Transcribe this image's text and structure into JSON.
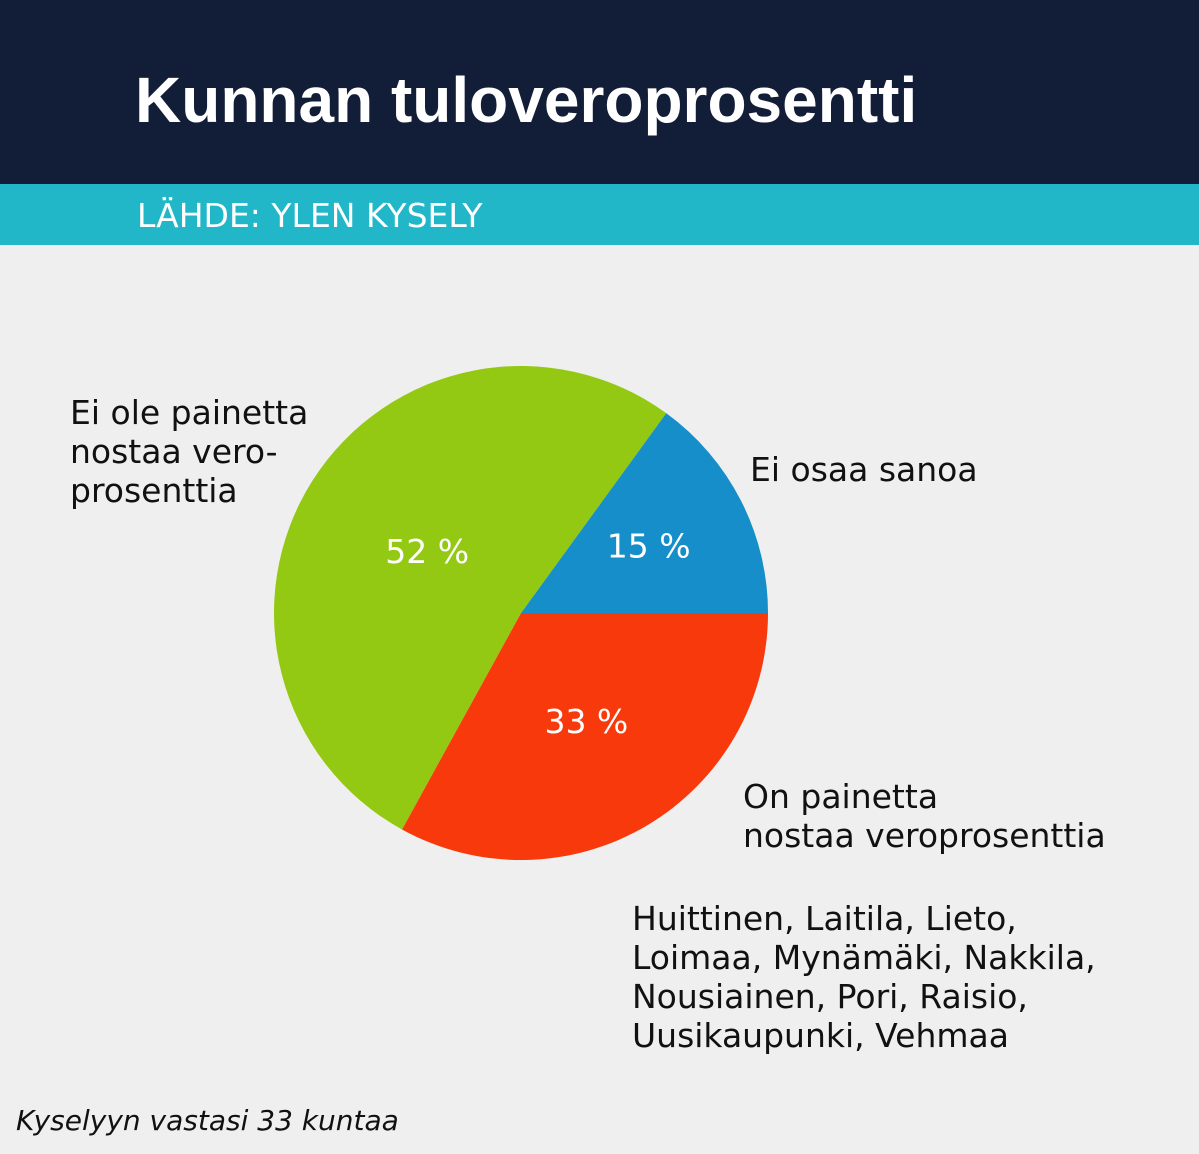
{
  "header": {
    "title": "Kunnan tuloveroprosentti",
    "source": "LÄHDE: YLEN KYSELY"
  },
  "colors": {
    "header_bg": "#121d37",
    "source_bar_bg": "#21b6c8",
    "background": "#efefef"
  },
  "chart_data": {
    "type": "pie",
    "slices": [
      {
        "label_lines": [
          "Ei ole painetta",
          "nostaa vero-",
          "prosenttia"
        ],
        "value": 52,
        "value_label": "52 %",
        "color": "#93c913"
      },
      {
        "label_lines": [
          "Ei osaa sanoa"
        ],
        "value": 15,
        "value_label": "15 %",
        "color": "#158ec9"
      },
      {
        "label_lines": [
          "On painetta",
          "nostaa veroprosenttia"
        ],
        "value": 33,
        "value_label": "33 %",
        "color": "#f7390c"
      }
    ]
  },
  "annotation": {
    "lines": [
      "Huittinen, Laitila, Lieto,",
      "Loimaa, Mynämäki, Nakkila,",
      "Nousiainen, Pori, Raisio,",
      "Uusikaupunki, Vehmaa"
    ]
  },
  "footnote": "Kyselyyn vastasi 33 kuntaa"
}
